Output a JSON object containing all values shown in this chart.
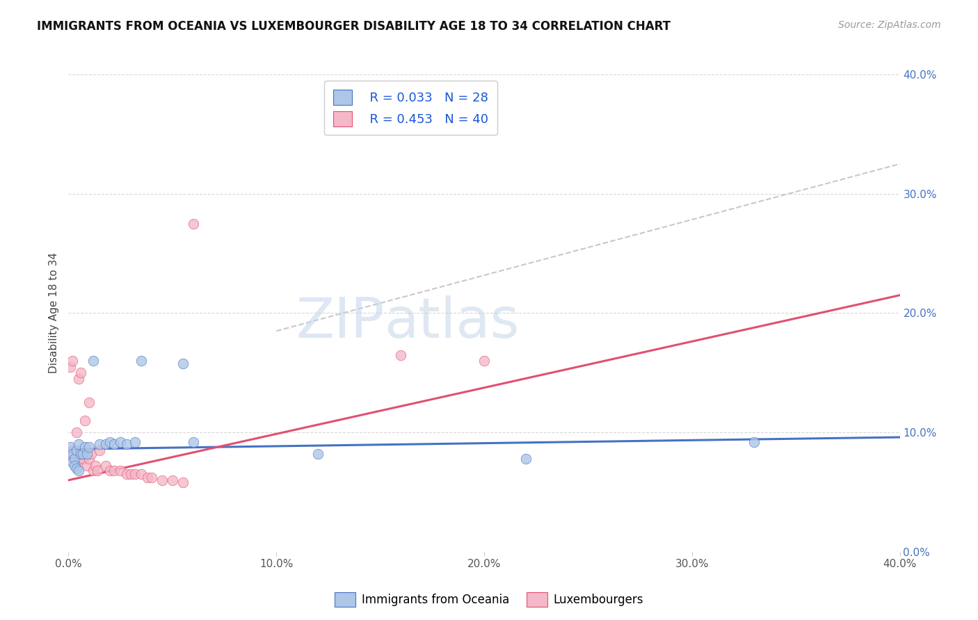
{
  "title": "IMMIGRANTS FROM OCEANIA VS LUXEMBOURGER DISABILITY AGE 18 TO 34 CORRELATION CHART",
  "source": "Source: ZipAtlas.com",
  "ylabel": "Disability Age 18 to 34",
  "xlim": [
    0.0,
    0.4
  ],
  "ylim": [
    0.0,
    0.4
  ],
  "xticks": [
    0.0,
    0.1,
    0.2,
    0.3,
    0.4
  ],
  "yticks": [
    0.0,
    0.1,
    0.2,
    0.3,
    0.4
  ],
  "xtick_labels": [
    "0.0%",
    "10.0%",
    "20.0%",
    "30.0%",
    "40.0%"
  ],
  "ytick_labels_right": [
    "0.0%",
    "10.0%",
    "20.0%",
    "30.0%",
    "40.0%"
  ],
  "legend_r1": "R = 0.033",
  "legend_n1": "N = 28",
  "legend_r2": "R = 0.453",
  "legend_n2": "N = 40",
  "color_oceania": "#aec6e8",
  "color_luxembourger": "#f4b8c8",
  "color_line_oceania": "#4472c4",
  "color_line_luxembourger": "#e05070",
  "color_dashed": "#c8c8c8",
  "watermark_zip": "ZIP",
  "watermark_atlas": "atlas",
  "legend_label1": "Immigrants from Oceania",
  "legend_label2": "Luxembourgers",
  "oceania_x": [
    0.001,
    0.002,
    0.002,
    0.003,
    0.003,
    0.004,
    0.004,
    0.005,
    0.005,
    0.006,
    0.007,
    0.008,
    0.009,
    0.01,
    0.012,
    0.015,
    0.018,
    0.02,
    0.022,
    0.025,
    0.028,
    0.032,
    0.035,
    0.055,
    0.06,
    0.12,
    0.22,
    0.33
  ],
  "oceania_y": [
    0.088,
    0.082,
    0.075,
    0.078,
    0.072,
    0.085,
    0.07,
    0.09,
    0.068,
    0.082,
    0.082,
    0.088,
    0.082,
    0.088,
    0.16,
    0.09,
    0.09,
    0.092,
    0.09,
    0.092,
    0.09,
    0.092,
    0.16,
    0.158,
    0.092,
    0.082,
    0.078,
    0.092
  ],
  "lux_x": [
    0.001,
    0.001,
    0.002,
    0.002,
    0.003,
    0.003,
    0.004,
    0.004,
    0.005,
    0.005,
    0.006,
    0.006,
    0.007,
    0.007,
    0.008,
    0.008,
    0.009,
    0.01,
    0.01,
    0.011,
    0.012,
    0.013,
    0.014,
    0.015,
    0.018,
    0.02,
    0.022,
    0.025,
    0.028,
    0.03,
    0.032,
    0.035,
    0.038,
    0.04,
    0.045,
    0.05,
    0.055,
    0.06,
    0.16,
    0.2
  ],
  "lux_y": [
    0.082,
    0.155,
    0.085,
    0.16,
    0.078,
    0.082,
    0.075,
    0.1,
    0.082,
    0.145,
    0.082,
    0.15,
    0.078,
    0.078,
    0.082,
    0.11,
    0.072,
    0.078,
    0.125,
    0.082,
    0.068,
    0.072,
    0.068,
    0.085,
    0.072,
    0.068,
    0.068,
    0.068,
    0.065,
    0.065,
    0.065,
    0.065,
    0.062,
    0.062,
    0.06,
    0.06,
    0.058,
    0.275,
    0.165,
    0.16
  ],
  "blue_line_x0": 0.0,
  "blue_line_x1": 0.4,
  "blue_line_y0": 0.086,
  "blue_line_y1": 0.096,
  "pink_line_x0": 0.0,
  "pink_line_x1": 0.4,
  "pink_line_y0": 0.06,
  "pink_line_y1": 0.215,
  "dash_line_x0": 0.1,
  "dash_line_x1": 0.4,
  "dash_line_y0": 0.185,
  "dash_line_y1": 0.325
}
